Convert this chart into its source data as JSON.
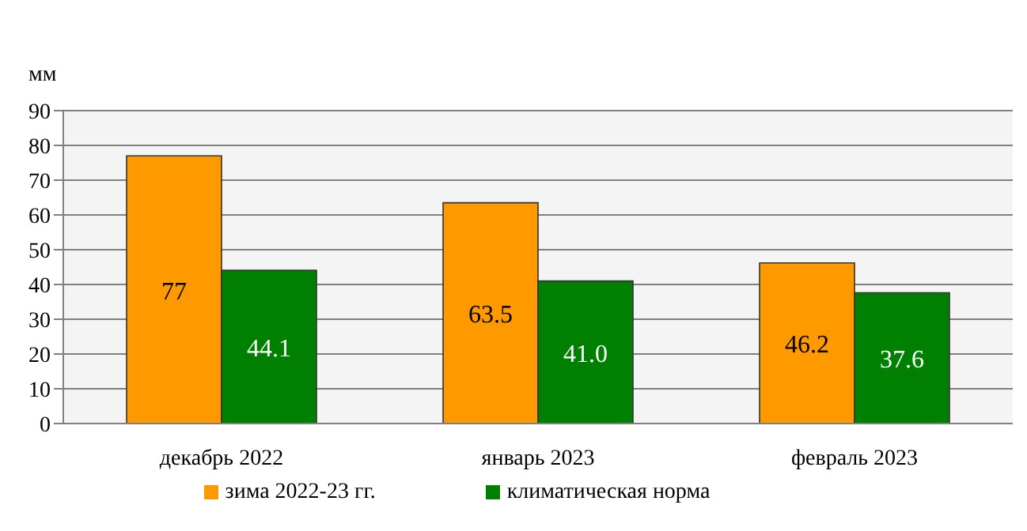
{
  "chart_data": {
    "type": "bar",
    "ylabel": "мм",
    "categories": [
      "декабрь 2022",
      "январь 2023",
      "февраль 2023"
    ],
    "series": [
      {
        "name": "зима 2022-23 гг.",
        "color": "#ff9900",
        "values": [
          77,
          63.5,
          46.2
        ],
        "value_labels": [
          "77",
          "63.5",
          "46.2"
        ]
      },
      {
        "name": "климатическая норма",
        "color": "#008000",
        "values": [
          44.1,
          41.0,
          37.6
        ],
        "value_labels": [
          "44.1",
          "41.0",
          "37.6"
        ]
      }
    ],
    "ylim": [
      0,
      90
    ],
    "yticks": [
      0,
      10,
      20,
      30,
      40,
      50,
      60,
      70,
      80,
      90
    ],
    "grid": "y",
    "legend": "bottom"
  }
}
